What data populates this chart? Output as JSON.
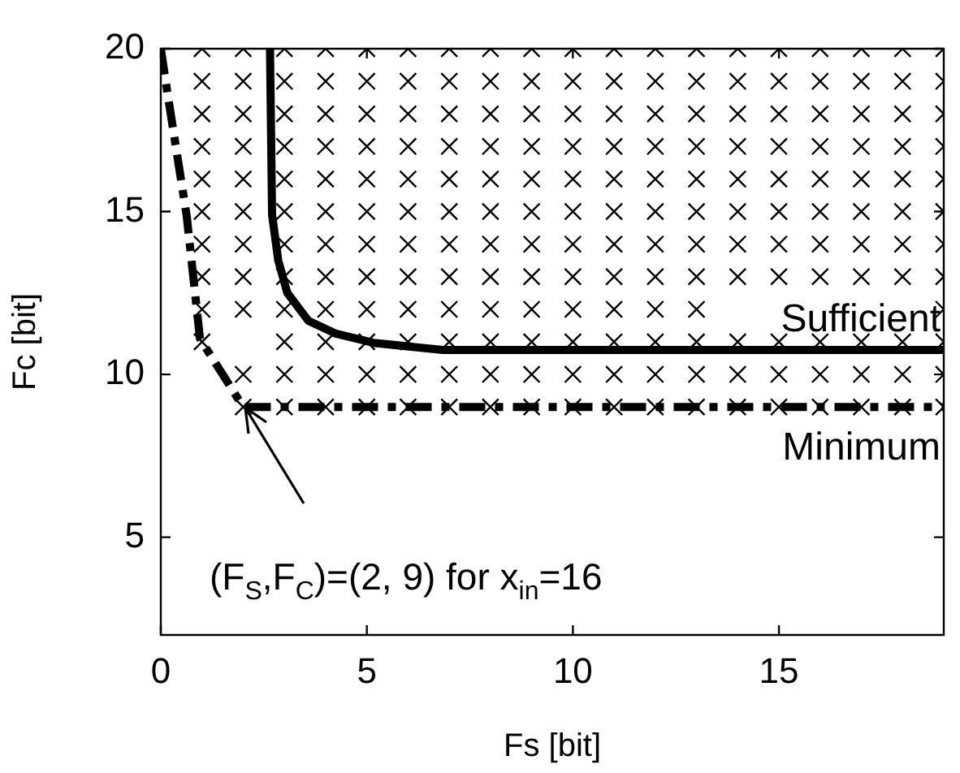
{
  "chart_data": {
    "type": "line",
    "xlabel": "Fs [bit]",
    "ylabel": "Fc [bit]",
    "xlim": [
      0,
      19
    ],
    "ylim": [
      2,
      20
    ],
    "xticks": [
      0,
      5,
      10,
      15
    ],
    "yticks": [
      5,
      10,
      15,
      20
    ],
    "grid": false,
    "legend": false,
    "series": [
      {
        "type": "scatter",
        "marker": "cross",
        "color": "#000000",
        "x": [
          1,
          1,
          1,
          1,
          1,
          1,
          1,
          1,
          1,
          1,
          2,
          2,
          2,
          2,
          2,
          2,
          2,
          2,
          2,
          2,
          2,
          3,
          3,
          3,
          3,
          3,
          3,
          3,
          3,
          3,
          3,
          3,
          3,
          4,
          4,
          4,
          4,
          4,
          4,
          4,
          4,
          4,
          4,
          4,
          4,
          5,
          5,
          5,
          5,
          5,
          5,
          5,
          5,
          5,
          5,
          5,
          5,
          6,
          6,
          6,
          6,
          6,
          6,
          6,
          6,
          6,
          6,
          6,
          6,
          7,
          7,
          7,
          7,
          7,
          7,
          7,
          7,
          7,
          7,
          7,
          7,
          8,
          8,
          8,
          8,
          8,
          8,
          8,
          8,
          8,
          8,
          8,
          8,
          9,
          9,
          9,
          9,
          9,
          9,
          9,
          9,
          9,
          9,
          9,
          9,
          10,
          10,
          10,
          10,
          10,
          10,
          10,
          10,
          10,
          10,
          10,
          10,
          11,
          11,
          11,
          11,
          11,
          11,
          11,
          11,
          11,
          11,
          11,
          11,
          12,
          12,
          12,
          12,
          12,
          12,
          12,
          12,
          12,
          12,
          12,
          12,
          13,
          13,
          13,
          13,
          13,
          13,
          13,
          13,
          13,
          13,
          13,
          13,
          14,
          14,
          14,
          14,
          14,
          14,
          14,
          14,
          14,
          14,
          14,
          15,
          15,
          15,
          15,
          15,
          15,
          15,
          15,
          15,
          15,
          15,
          16,
          16,
          16,
          16,
          16,
          16,
          16,
          16,
          16,
          16,
          16,
          17,
          17,
          17,
          17,
          17,
          17,
          17,
          17,
          17,
          17,
          17,
          18,
          18,
          18,
          18,
          18,
          18,
          18,
          18,
          18,
          18,
          18,
          19,
          19,
          19,
          19,
          19,
          19,
          19,
          19,
          19,
          19,
          19,
          19
        ],
        "values": [
          11,
          12,
          13,
          14,
          15,
          16,
          17,
          18,
          19,
          20,
          9,
          10,
          12,
          13,
          14,
          15,
          16,
          17,
          18,
          19,
          20,
          9,
          10,
          11,
          12,
          13,
          14,
          15,
          16,
          17,
          18,
          19,
          20,
          9,
          10,
          11,
          12,
          13,
          14,
          15,
          16,
          17,
          18,
          19,
          20,
          9,
          10,
          11,
          12,
          13,
          14,
          15,
          16,
          17,
          18,
          19,
          20,
          9,
          10,
          11,
          12,
          13,
          14,
          15,
          16,
          17,
          18,
          19,
          20,
          9,
          10,
          11,
          12,
          13,
          14,
          15,
          16,
          17,
          18,
          19,
          20,
          9,
          10,
          11,
          12,
          13,
          14,
          15,
          16,
          17,
          18,
          19,
          20,
          9,
          10,
          11,
          12,
          13,
          14,
          15,
          16,
          17,
          18,
          19,
          20,
          9,
          10,
          11,
          12,
          13,
          14,
          15,
          16,
          17,
          18,
          19,
          20,
          9,
          10,
          11,
          12,
          13,
          14,
          15,
          16,
          17,
          18,
          19,
          20,
          9,
          10,
          11,
          12,
          13,
          14,
          15,
          16,
          17,
          18,
          19,
          20,
          9,
          10,
          11,
          12,
          13,
          14,
          15,
          16,
          17,
          18,
          19,
          20,
          9,
          10,
          11,
          13,
          14,
          15,
          16,
          17,
          18,
          19,
          20,
          9,
          10,
          11,
          13,
          14,
          15,
          16,
          17,
          18,
          19,
          20,
          9,
          10,
          11,
          13,
          14,
          15,
          16,
          17,
          18,
          19,
          20,
          9,
          10,
          11,
          13,
          14,
          15,
          16,
          17,
          18,
          19,
          20,
          9,
          10,
          11,
          13,
          14,
          15,
          16,
          17,
          18,
          19,
          20,
          9,
          10,
          11,
          12,
          13,
          14,
          15,
          16,
          17,
          18,
          19,
          20
        ]
      },
      {
        "name": "Sufficient",
        "line_style": "solid",
        "marker": "none",
        "color": "#000000",
        "x": [
          2.65,
          2.7,
          2.85,
          3.07,
          3.58,
          4.25,
          5.16,
          6.85,
          19
        ],
        "values": [
          20,
          14.9,
          13.5,
          12.5,
          11.65,
          11.25,
          10.97,
          10.75,
          10.75
        ]
      },
      {
        "name": "Minimum",
        "line_style": "dashed",
        "marker": "none",
        "color": "#000000",
        "x": [
          0,
          0.16,
          0.63,
          0.95,
          2,
          19
        ],
        "values": [
          20,
          18.65,
          14.85,
          11.1,
          9,
          9
        ]
      }
    ],
    "annotations": [
      "(F$_{S}$,F$_{C}$)=(2, 9) for x$_{in}$=16"
    ]
  }
}
